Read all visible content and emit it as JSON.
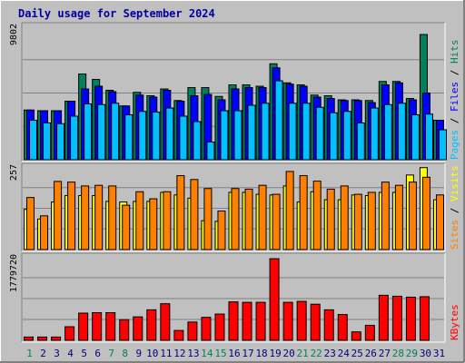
{
  "title": "Daily usage for September 2024",
  "colors": {
    "background": "#C0C0C0",
    "title": "#0000A0",
    "hits": "#00805C",
    "files": "#0000FF",
    "pages": "#00C0FF",
    "visits": "#FFFF00",
    "sites": "#FF8000",
    "kbytes": "#FF0000",
    "weekend_label": "#00805C",
    "weekday_label": "#000080"
  },
  "chart_data": [
    {
      "type": "bar",
      "panel": "hits-files-pages",
      "categories": [
        "1",
        "2",
        "3",
        "4",
        "5",
        "6",
        "7",
        "8",
        "9",
        "10",
        "11",
        "12",
        "13",
        "14",
        "15",
        "16",
        "17",
        "18",
        "19",
        "20",
        "21",
        "22",
        "23",
        "24",
        "25",
        "26",
        "27",
        "28",
        "29",
        "30",
        "31"
      ],
      "ymax_label": "9802",
      "ylim": [
        0,
        9802
      ],
      "legend": [
        "Pages",
        "Files",
        "Hits"
      ],
      "series": [
        {
          "name": "Hits",
          "values": [
            3650,
            3600,
            3600,
            4300,
            6300,
            5900,
            5100,
            3950,
            4950,
            4700,
            5200,
            4350,
            5300,
            5300,
            4650,
            5500,
            5500,
            5400,
            7050,
            5650,
            5500,
            4750,
            4700,
            4400,
            4400,
            4350,
            5750,
            5750,
            4500,
            9200,
            2900
          ]
        },
        {
          "name": "Files",
          "values": [
            3650,
            3600,
            3600,
            4300,
            5200,
            5400,
            5000,
            3950,
            4750,
            4600,
            5100,
            4300,
            4700,
            4800,
            4400,
            5200,
            5300,
            5300,
            6750,
            5550,
            5400,
            4600,
            4500,
            4350,
            4350,
            4200,
            5500,
            5650,
            4400,
            4900,
            2900
          ]
        },
        {
          "name": "Pages",
          "values": [
            2900,
            2700,
            2650,
            3200,
            4100,
            4050,
            4150,
            3300,
            3550,
            3500,
            3800,
            3200,
            2800,
            1300,
            3600,
            3600,
            4000,
            4150,
            5800,
            4150,
            4150,
            3850,
            3450,
            3550,
            2700,
            3800,
            4050,
            4150,
            3300,
            3350,
            2200
          ]
        }
      ]
    },
    {
      "type": "bar",
      "panel": "visits-sites",
      "categories": [
        "1",
        "2",
        "3",
        "4",
        "5",
        "6",
        "7",
        "8",
        "9",
        "10",
        "11",
        "12",
        "13",
        "14",
        "15",
        "16",
        "17",
        "18",
        "19",
        "20",
        "21",
        "22",
        "23",
        "24",
        "25",
        "26",
        "27",
        "28",
        "29",
        "30",
        "31"
      ],
      "ymax_label": "257",
      "ylim": [
        0,
        257
      ],
      "legend": [
        "Sites",
        "Visits"
      ],
      "series": [
        {
          "name": "Visits",
          "values": [
            125,
            95,
            148,
            168,
            168,
            168,
            150,
            148,
            150,
            150,
            178,
            170,
            160,
            90,
            88,
            178,
            178,
            172,
            170,
            198,
            148,
            180,
            155,
            155,
            170,
            168,
            178,
            178,
            232,
            255,
            155
          ]
        },
        {
          "name": "Sites",
          "values": [
            162,
            105,
            212,
            210,
            198,
            200,
            198,
            138,
            180,
            158,
            180,
            230,
            218,
            190,
            120,
            190,
            188,
            200,
            172,
            243,
            230,
            213,
            188,
            198,
            172,
            178,
            210,
            200,
            210,
            225,
            170
          ]
        }
      ]
    },
    {
      "type": "bar",
      "panel": "kbytes",
      "categories": [
        "1",
        "2",
        "3",
        "4",
        "5",
        "6",
        "7",
        "8",
        "9",
        "10",
        "11",
        "12",
        "13",
        "14",
        "15",
        "16",
        "17",
        "18",
        "19",
        "20",
        "21",
        "22",
        "23",
        "24",
        "25",
        "26",
        "27",
        "28",
        "29",
        "30",
        "31"
      ],
      "ymax_label": "1779720",
      "ylim": [
        0,
        1779720
      ],
      "legend": [
        "KBytes"
      ],
      "series": [
        {
          "name": "KBytes",
          "values": [
            70000,
            70000,
            70000,
            290000,
            580000,
            590000,
            590000,
            440000,
            500000,
            650000,
            780000,
            210000,
            390000,
            490000,
            560000,
            820000,
            810000,
            810000,
            1740000,
            810000,
            830000,
            770000,
            650000,
            550000,
            180000,
            320000,
            960000,
            940000,
            920000,
            930000,
            0
          ]
        }
      ]
    }
  ],
  "weekend_days": [
    1,
    7,
    8,
    14,
    15,
    21,
    22,
    28,
    29
  ]
}
